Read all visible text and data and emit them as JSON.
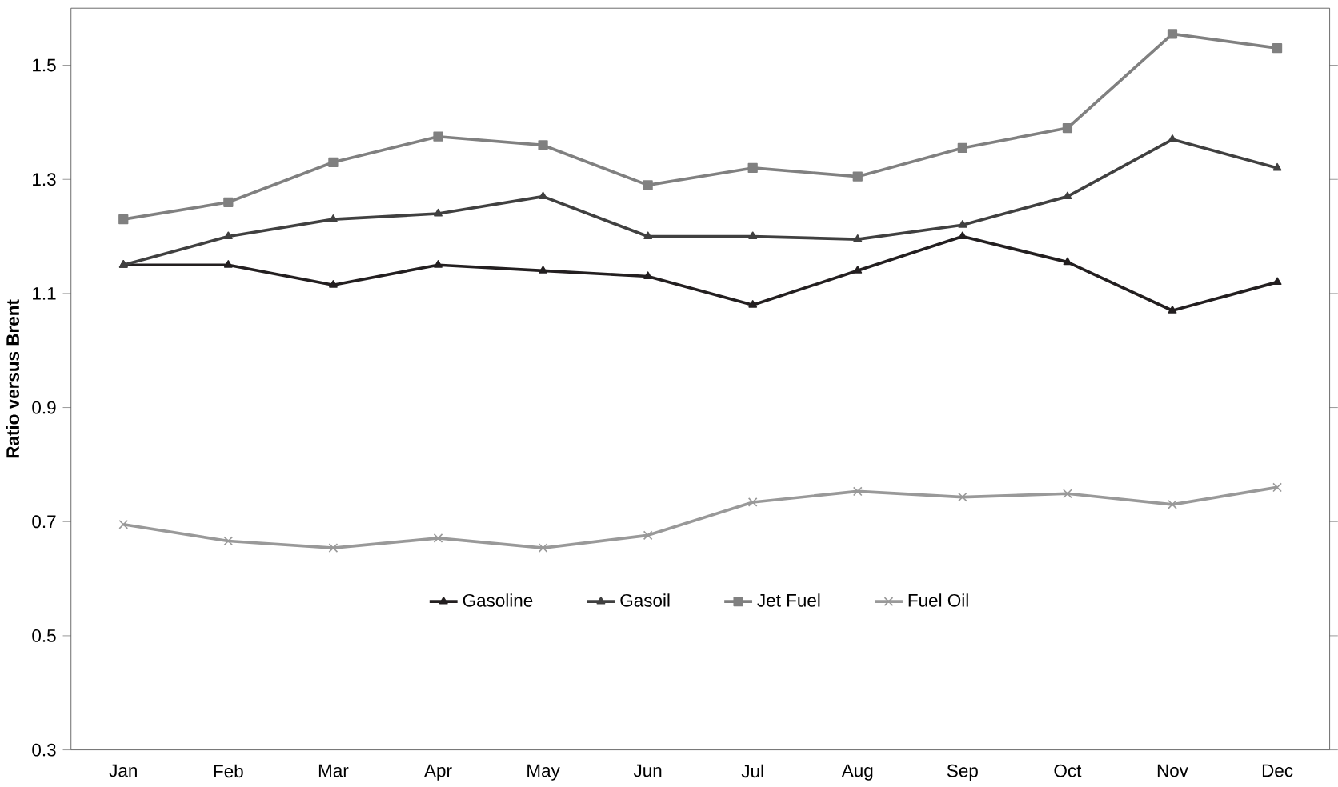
{
  "chart_data": {
    "type": "line",
    "ylabel": "Ratio versus Brent",
    "categories": [
      "Jan",
      "Feb",
      "Mar",
      "Apr",
      "May",
      "Jun",
      "Jul",
      "Aug",
      "Sep",
      "Oct",
      "Nov",
      "Dec"
    ],
    "series": [
      {
        "name": "Gasoline",
        "color": "#231f20",
        "marker": "triangle",
        "values": [
          1.15,
          1.15,
          1.115,
          1.15,
          1.14,
          1.13,
          1.08,
          1.14,
          1.2,
          1.155,
          1.07,
          1.12
        ]
      },
      {
        "name": "Gasoil",
        "color": "#404040",
        "marker": "triangle",
        "values": [
          1.15,
          1.2,
          1.23,
          1.24,
          1.27,
          1.2,
          1.2,
          1.195,
          1.22,
          1.27,
          1.37,
          1.32
        ]
      },
      {
        "name": "Jet Fuel",
        "color": "#808080",
        "marker": "square",
        "values": [
          1.23,
          1.26,
          1.33,
          1.375,
          1.36,
          1.29,
          1.32,
          1.305,
          1.355,
          1.39,
          1.555,
          1.53
        ]
      },
      {
        "name": "Fuel Oil",
        "color": "#999999",
        "marker": "cross",
        "values": [
          0.695,
          0.666,
          0.654,
          0.671,
          0.654,
          0.676,
          0.734,
          0.753,
          0.743,
          0.749,
          0.73,
          0.76
        ]
      }
    ],
    "ylim": [
      0.3,
      1.6
    ],
    "yticks": [
      0.3,
      0.5,
      0.7,
      0.9,
      1.1,
      1.3,
      1.5
    ],
    "legend": "bottom",
    "grid": false,
    "line_style": "solid"
  }
}
